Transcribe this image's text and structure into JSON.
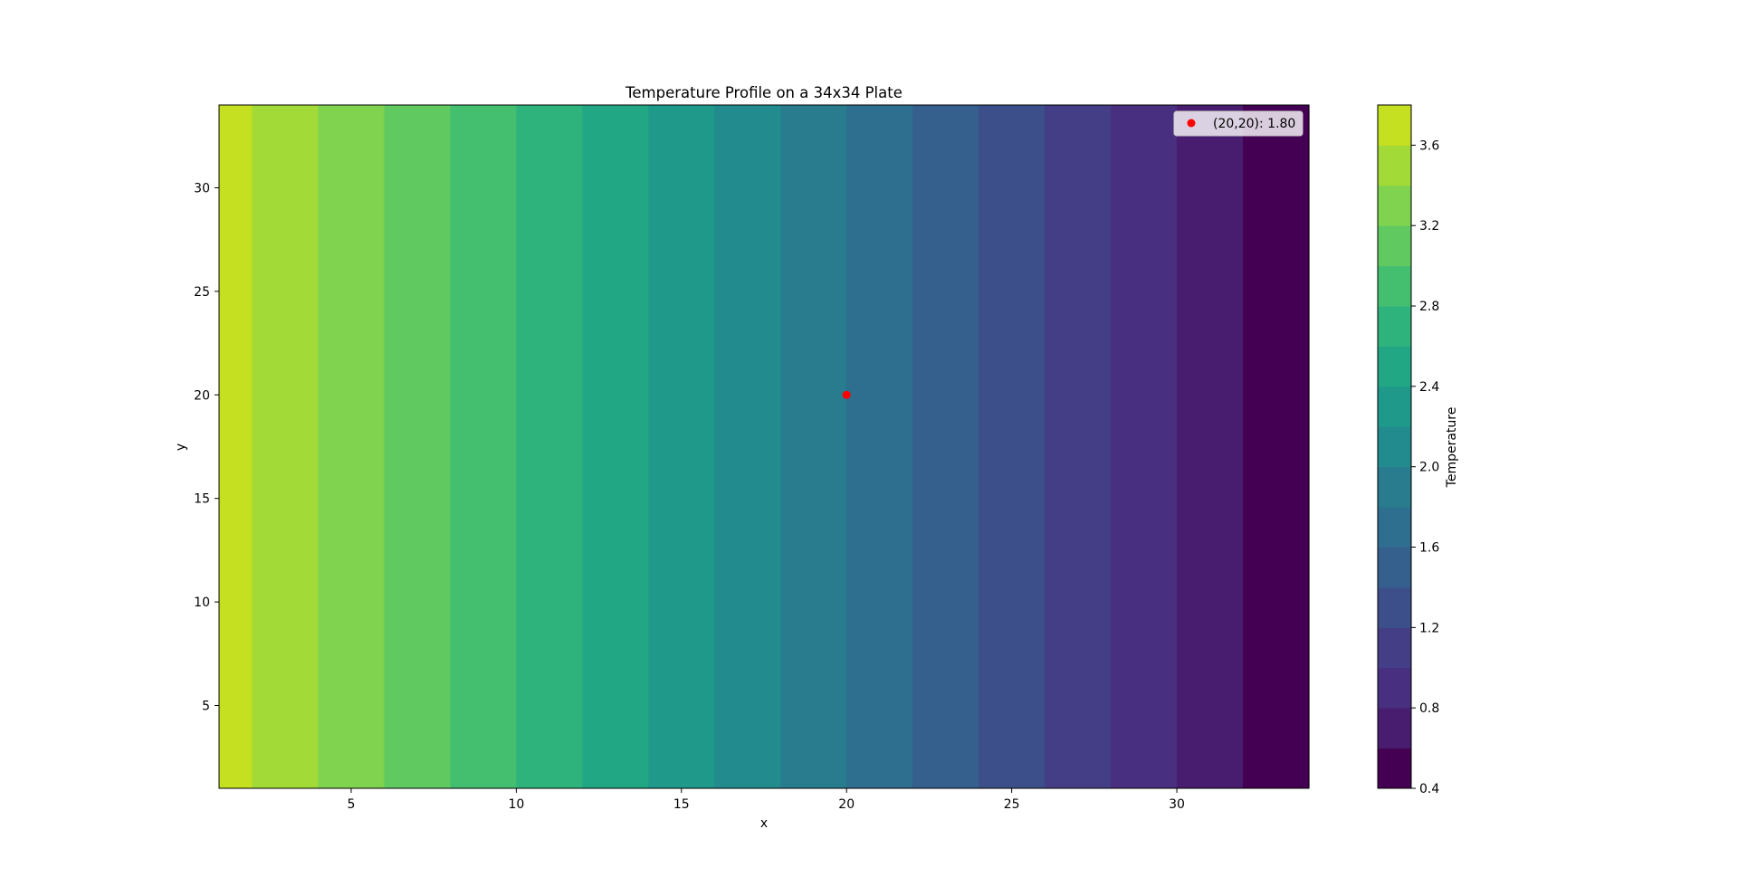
{
  "chart_data": {
    "type": "heatmap",
    "title": "Temperature Profile on a 34x34 Plate",
    "xlabel": "x",
    "ylabel": "y",
    "xlim": [
      1,
      34
    ],
    "ylim": [
      1,
      34
    ],
    "x_ticks": [
      5,
      10,
      15,
      20,
      25,
      30
    ],
    "y_ticks": [
      5,
      10,
      15,
      20,
      25,
      30
    ],
    "bands": [
      {
        "x_start": 1,
        "x_end": 2,
        "value": 3.7
      },
      {
        "x_start": 2,
        "x_end": 4,
        "value": 3.5
      },
      {
        "x_start": 4,
        "x_end": 6,
        "value": 3.3
      },
      {
        "x_start": 6,
        "x_end": 8,
        "value": 3.1
      },
      {
        "x_start": 8,
        "x_end": 10,
        "value": 2.9
      },
      {
        "x_start": 10,
        "x_end": 12,
        "value": 2.7
      },
      {
        "x_start": 12,
        "x_end": 14,
        "value": 2.5
      },
      {
        "x_start": 14,
        "x_end": 16,
        "value": 2.3
      },
      {
        "x_start": 16,
        "x_end": 18,
        "value": 2.1
      },
      {
        "x_start": 18,
        "x_end": 20,
        "value": 1.9
      },
      {
        "x_start": 20,
        "x_end": 22,
        "value": 1.7
      },
      {
        "x_start": 22,
        "x_end": 24,
        "value": 1.5
      },
      {
        "x_start": 24,
        "x_end": 26,
        "value": 1.3
      },
      {
        "x_start": 26,
        "x_end": 28,
        "value": 1.1
      },
      {
        "x_start": 28,
        "x_end": 30,
        "value": 0.9
      },
      {
        "x_start": 30,
        "x_end": 32,
        "value": 0.7
      },
      {
        "x_start": 32,
        "x_end": 34,
        "value": 0.5
      }
    ],
    "marker": {
      "x": 20,
      "y": 20,
      "color": "#ff0000",
      "label": "(20,20): 1.80"
    },
    "legend_position": "top-right",
    "colorbar": {
      "label": "Temperature",
      "range": [
        0.4,
        3.8
      ],
      "tick_labels": [
        "0.4",
        "0.8",
        "1.2",
        "1.6",
        "2.0",
        "2.4",
        "2.8",
        "3.2",
        "3.6"
      ],
      "levels": [
        {
          "from": 0.4,
          "to": 0.6,
          "color": "#440154"
        },
        {
          "from": 0.6,
          "to": 0.8,
          "color": "#481c6e"
        },
        {
          "from": 0.8,
          "to": 1.0,
          "color": "#482f7f"
        },
        {
          "from": 1.0,
          "to": 1.2,
          "color": "#433e85"
        },
        {
          "from": 1.2,
          "to": 1.4,
          "color": "#3c4f8a"
        },
        {
          "from": 1.4,
          "to": 1.6,
          "color": "#355f8d"
        },
        {
          "from": 1.6,
          "to": 1.8,
          "color": "#2e6e8e"
        },
        {
          "from": 1.8,
          "to": 2.0,
          "color": "#287c8e"
        },
        {
          "from": 2.0,
          "to": 2.2,
          "color": "#228b8d"
        },
        {
          "from": 2.2,
          "to": 2.4,
          "color": "#1f998a"
        },
        {
          "from": 2.4,
          "to": 2.6,
          "color": "#22a785"
        },
        {
          "from": 2.6,
          "to": 2.8,
          "color": "#2eb37c"
        },
        {
          "from": 2.8,
          "to": 3.0,
          "color": "#44bf70"
        },
        {
          "from": 3.0,
          "to": 3.2,
          "color": "#60ca60"
        },
        {
          "from": 3.2,
          "to": 3.4,
          "color": "#7fd34e"
        },
        {
          "from": 3.4,
          "to": 3.6,
          "color": "#a2da37"
        },
        {
          "from": 3.6,
          "to": 3.8,
          "color": "#c5e021"
        }
      ],
      "top_color": "#e6e419"
    }
  }
}
